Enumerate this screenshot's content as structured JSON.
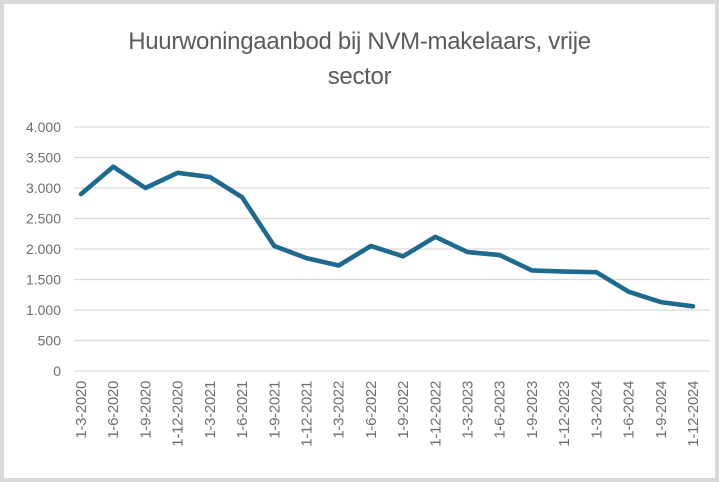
{
  "chart": {
    "title": "Huurwoningaanbod bij NVM-makelaars, vrije sector",
    "title_lines": [
      "Huurwoningaanbod bij NVM-makelaars, vrije",
      "sector"
    ]
  },
  "chart_data": {
    "type": "line",
    "title": "Huurwoningaanbod bij NVM-makelaars, vrije sector",
    "categories": [
      "1-3-2020",
      "1-6-2020",
      "1-9-2020",
      "1-12-2020",
      "1-3-2021",
      "1-6-2021",
      "1-9-2021",
      "1-12-2021",
      "1-3-2022",
      "1-6-2022",
      "1-9-2022",
      "1-12-2022",
      "1-3-2023",
      "1-6-2023",
      "1-9-2023",
      "1-12-2023",
      "1-3-2024",
      "1-6-2024",
      "1-9-2024",
      "1-12-2024"
    ],
    "values": [
      2900,
      3350,
      3000,
      3250,
      3180,
      2850,
      2050,
      1850,
      1730,
      2050,
      1880,
      2200,
      1950,
      1900,
      1650,
      1630,
      1620,
      1300,
      1130,
      1060
    ],
    "xlabel": "",
    "ylabel": "",
    "ylim": [
      0,
      4000
    ],
    "ytick_step": 500,
    "ytick_labels": [
      "4.000",
      "3.500",
      "3.000",
      "2.500",
      "2.000",
      "1.500",
      "1.000",
      "500",
      "0"
    ],
    "grid": true,
    "legend": false,
    "colors": {
      "line": "#1e6a8e",
      "grid": "#d9d9d9",
      "tick_text": "#6e6e6e",
      "title_text": "#5b5b5b",
      "frame": "#d9d9d9",
      "background": "#ffffff"
    }
  }
}
